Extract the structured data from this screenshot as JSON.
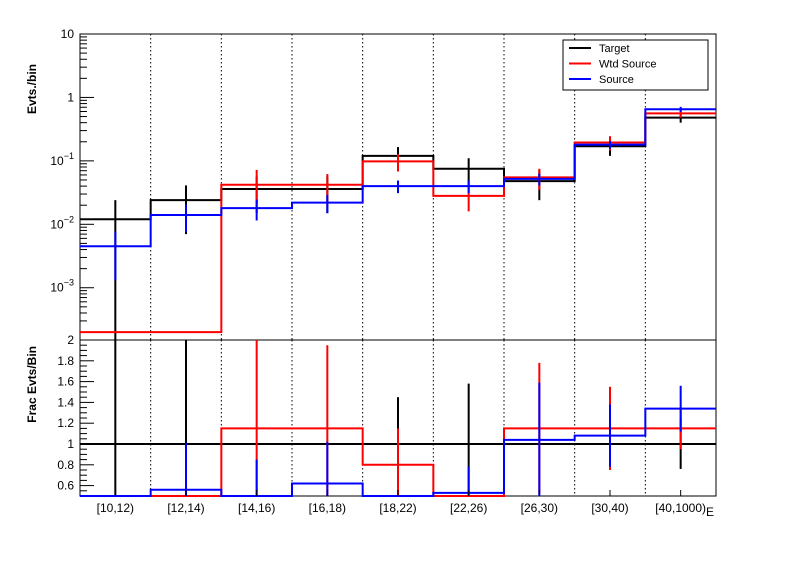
{
  "chart_data": [
    {
      "type": "step",
      "panel": "upper",
      "ylabel": "Evts./bin",
      "yscale": "log",
      "ylim": [
        0.00015,
        10
      ],
      "yticks": [
        {
          "value": 10,
          "label": "10",
          "exp": ""
        },
        {
          "value": 1,
          "label": "1",
          "exp": ""
        },
        {
          "value": 0.1,
          "label": "10",
          "exp": "−1"
        },
        {
          "value": 0.01,
          "label": "10",
          "exp": "−2"
        },
        {
          "value": 0.001,
          "label": "10",
          "exp": "−3"
        }
      ],
      "legend": {
        "position": "top-right",
        "entries": [
          "Target",
          "Wtd Source",
          "Source"
        ]
      },
      "series": [
        {
          "name": "Target",
          "color": "#000000",
          "values": [
            0.012,
            0.024,
            0.036,
            0.036,
            0.12,
            0.075,
            0.048,
            0.17,
            0.48
          ],
          "err_lo": [
            0.012,
            0.017,
            0.021,
            0.021,
            0.045,
            0.035,
            0.024,
            0.05,
            0.08
          ],
          "err_hi": [
            0.012,
            0.017,
            0.021,
            0.021,
            0.045,
            0.035,
            0.024,
            0.05,
            0.08
          ]
        },
        {
          "name": "Wtd Source",
          "color": "#ff0000",
          "values": [
            0.0002,
            0.0002,
            0.042,
            0.042,
            0.098,
            0.028,
            0.055,
            0.195,
            0.56
          ],
          "err_lo": [
            0,
            0,
            0.021,
            0.021,
            0.03,
            0.012,
            0.02,
            0.05,
            0.08
          ],
          "err_hi": [
            0,
            0,
            0.03,
            0.02,
            0.03,
            0.012,
            0.02,
            0.05,
            0.08
          ]
        },
        {
          "name": "Source",
          "color": "#0000ff",
          "values": [
            0.0045,
            0.014,
            0.018,
            0.022,
            0.04,
            0.04,
            0.052,
            0.18,
            0.65
          ],
          "err_lo": [
            0.0032,
            0.0065,
            0.0065,
            0.007,
            0.009,
            0.009,
            0.011,
            0.025,
            0.06
          ],
          "err_hi": [
            0.0032,
            0.0065,
            0.0065,
            0.007,
            0.009,
            0.009,
            0.011,
            0.025,
            0.06
          ]
        }
      ]
    },
    {
      "type": "step",
      "panel": "lower",
      "ylabel": "Frac Evts/Bin",
      "ylim": [
        0.5,
        2.0
      ],
      "yticks": [
        0.6,
        0.8,
        1,
        1.2,
        1.4,
        1.6,
        1.8,
        2
      ],
      "reference_line": 1,
      "series": [
        {
          "name": "Target",
          "color": "#000000",
          "values": [
            1,
            1,
            1,
            1,
            1,
            1,
            1,
            1,
            1
          ],
          "err_lo": [
            1,
            1,
            0,
            0,
            0.45,
            0.58,
            0,
            0,
            0.24
          ],
          "err_hi": [
            1,
            1,
            0,
            0,
            0.45,
            0.58,
            0,
            0,
            0.24
          ]
        },
        {
          "name": "Wtd Source",
          "color": "#ff0000",
          "values": [
            0.5,
            0.5,
            1.15,
            1.15,
            0.8,
            0.5,
            1.15,
            1.15,
            1.15
          ],
          "err_lo": [
            0,
            0,
            0.8,
            0.75,
            0.35,
            0,
            0.63,
            0.4,
            0.2
          ],
          "err_hi": [
            0,
            0,
            0.85,
            0.8,
            0.35,
            0,
            0.63,
            0.4,
            0.2
          ]
        },
        {
          "name": "Source",
          "color": "#0000ff",
          "values": [
            0.5,
            0.56,
            0.5,
            0.62,
            0.5,
            0.53,
            1.04,
            1.08,
            1.34
          ],
          "err_lo": [
            0,
            0.45,
            0,
            0.4,
            0,
            0.25,
            0.55,
            0.3,
            0.22
          ],
          "err_hi": [
            0,
            0.45,
            0.35,
            0.4,
            0,
            0.25,
            0.55,
            0.3,
            0.22
          ]
        }
      ]
    }
  ],
  "categories": [
    "[10,12)",
    "[12,14)",
    "[14,16)",
    "[16,18)",
    "[18,22)",
    "[22,26)",
    "[26,30)",
    "[30,40)",
    "[40,1000)"
  ],
  "xlabel": "E"
}
